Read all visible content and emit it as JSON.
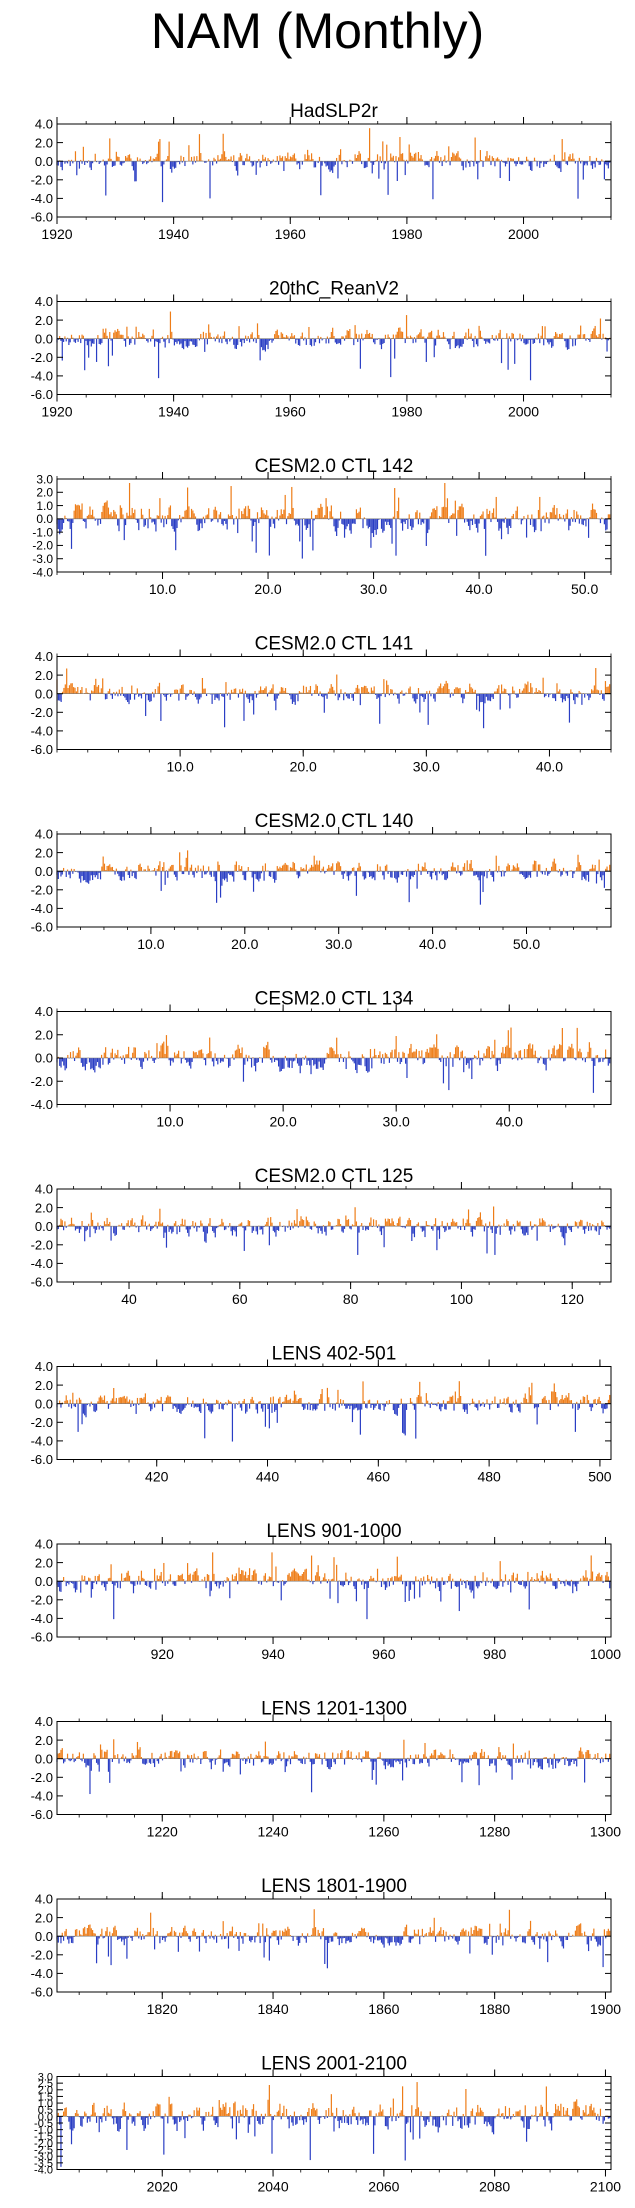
{
  "figure": {
    "title": "NAM (Monthly)"
  },
  "colors": {
    "positive": "#ee7d18",
    "negative": "#2a3ec4",
    "axis": "#000000"
  },
  "chart_data": [
    {
      "type": "bar",
      "title": "HadSLP2r",
      "ylim": [
        -6.0,
        4.0
      ],
      "yticks": [
        4.0,
        2.0,
        0.0,
        -2.0,
        -4.0,
        -6.0
      ],
      "ytick_labels": [
        "4.0",
        "2.0",
        "0.0",
        "-2.0",
        "-4.0",
        "-6.0"
      ],
      "xlim": [
        1920,
        2015
      ],
      "xticks": [
        1920,
        1940,
        1960,
        1980,
        2000
      ],
      "xtick_labels": [
        "1920",
        "1940",
        "1960",
        "1980",
        "2000"
      ],
      "x_start": 1920,
      "x_end": 2015,
      "n_bars": 420,
      "seed": 11,
      "pos_amp": 3.7,
      "neg_amp": 5.0
    },
    {
      "type": "bar",
      "title": "20thC_ReanV2",
      "ylim": [
        -6.0,
        4.0
      ],
      "yticks": [
        4.0,
        2.0,
        0.0,
        -2.0,
        -4.0,
        -6.0
      ],
      "ytick_labels": [
        "4.0",
        "2.0",
        "0.0",
        "-2.0",
        "-4.0",
        "-6.0"
      ],
      "xlim": [
        1920,
        2015
      ],
      "xticks": [
        1920,
        1940,
        1960,
        1980,
        2000
      ],
      "xtick_labels": [
        "1920",
        "1940",
        "1960",
        "1980",
        "2000"
      ],
      "x_start": 1920,
      "x_end": 2015,
      "n_bars": 420,
      "seed": 23,
      "pos_amp": 3.5,
      "neg_amp": 5.0
    },
    {
      "type": "bar",
      "title": "CESM2.0 CTL 142",
      "ylim": [
        -4.0,
        3.0
      ],
      "yticks": [
        3.0,
        2.0,
        1.0,
        0.0,
        -1.0,
        -2.0,
        -3.0,
        -4.0
      ],
      "ytick_labels": [
        "3.0",
        "2.0",
        "1.0",
        "0.0",
        "-1.0",
        "-2.0",
        "-3.0",
        "-4.0"
      ],
      "xlim": [
        0,
        52.5
      ],
      "xticks": [
        10,
        20,
        30,
        40,
        50
      ],
      "xtick_labels": [
        "10.0",
        "20.0",
        "30.0",
        "40.0",
        "50.0"
      ],
      "x_start": 0,
      "x_end": 52.5,
      "n_bars": 420,
      "seed": 37,
      "pos_amp": 2.7,
      "neg_amp": 3.9
    },
    {
      "type": "bar",
      "title": "CESM2.0 CTL 141",
      "ylim": [
        -6.0,
        4.0
      ],
      "yticks": [
        4.0,
        2.0,
        0.0,
        -2.0,
        -4.0,
        -6.0
      ],
      "ytick_labels": [
        "4.0",
        "2.0",
        "0.0",
        "-2.0",
        "-4.0",
        "-6.0"
      ],
      "xlim": [
        0,
        45
      ],
      "xticks": [
        10,
        20,
        30,
        40
      ],
      "xtick_labels": [
        "10.0",
        "20.0",
        "30.0",
        "40.0"
      ],
      "x_start": 0,
      "x_end": 45,
      "n_bars": 400,
      "seed": 41,
      "pos_amp": 2.8,
      "neg_amp": 3.8
    },
    {
      "type": "bar",
      "title": "CESM2.0 CTL 140",
      "ylim": [
        -6.0,
        4.0
      ],
      "yticks": [
        4.0,
        2.0,
        0.0,
        -2.0,
        -4.0,
        -6.0
      ],
      "ytick_labels": [
        "4.0",
        "2.0",
        "0.0",
        "-2.0",
        "-4.0",
        "-6.0"
      ],
      "xlim": [
        0,
        59
      ],
      "xticks": [
        10,
        20,
        30,
        40,
        50
      ],
      "xtick_labels": [
        "10.0",
        "20.0",
        "30.0",
        "40.0",
        "50.0"
      ],
      "x_start": 0,
      "x_end": 59,
      "n_bars": 420,
      "seed": 53,
      "pos_amp": 2.6,
      "neg_amp": 3.6
    },
    {
      "type": "bar",
      "title": "CESM2.0 CTL 134",
      "ylim": [
        -4.0,
        4.0
      ],
      "yticks": [
        4.0,
        2.0,
        0.0,
        -2.0,
        -4.0
      ],
      "ytick_labels": [
        "4.0",
        "2.0",
        "0.0",
        "-2.0",
        "-4.0"
      ],
      "xlim": [
        0,
        49
      ],
      "xticks": [
        10,
        20,
        30,
        40
      ],
      "xtick_labels": [
        "10.0",
        "20.0",
        "30.0",
        "40.0"
      ],
      "x_start": 0,
      "x_end": 49,
      "n_bars": 410,
      "seed": 67,
      "pos_amp": 3.0,
      "neg_amp": 3.0
    },
    {
      "type": "bar",
      "title": "CESM2.0 CTL 125",
      "ylim": [
        -6.0,
        4.0
      ],
      "yticks": [
        4.0,
        2.0,
        0.0,
        -2.0,
        -4.0,
        -6.0
      ],
      "ytick_labels": [
        "4.0",
        "2.0",
        "0.0",
        "-2.0",
        "-4.0",
        "-6.0"
      ],
      "xlim": [
        27,
        127
      ],
      "xticks": [
        40,
        60,
        80,
        100,
        120
      ],
      "xtick_labels": [
        "40",
        "60",
        "80",
        "100",
        "120"
      ],
      "x_start": 27,
      "x_end": 127,
      "n_bars": 420,
      "seed": 71,
      "pos_amp": 2.6,
      "neg_amp": 3.7
    },
    {
      "type": "bar",
      "title": "LENS 402-501",
      "ylim": [
        -6.0,
        4.0
      ],
      "yticks": [
        4.0,
        2.0,
        0.0,
        -2.0,
        -4.0,
        -6.0
      ],
      "ytick_labels": [
        "4.0",
        "2.0",
        "0.0",
        "-2.0",
        "-4.0",
        "-6.0"
      ],
      "xlim": [
        402,
        502
      ],
      "xticks": [
        420,
        440,
        460,
        480,
        500
      ],
      "xtick_labels": [
        "420",
        "440",
        "460",
        "480",
        "500"
      ],
      "x_start": 402,
      "x_end": 502,
      "n_bars": 420,
      "seed": 83,
      "pos_amp": 3.0,
      "neg_amp": 4.8
    },
    {
      "type": "bar",
      "title": "LENS 901-1000",
      "ylim": [
        -6.0,
        4.0
      ],
      "yticks": [
        4.0,
        2.0,
        0.0,
        -2.0,
        -4.0,
        -6.0
      ],
      "ytick_labels": [
        "4.0",
        "2.0",
        "0.0",
        "-2.0",
        "-4.0",
        "-6.0"
      ],
      "xlim": [
        901,
        1001
      ],
      "xticks": [
        920,
        940,
        960,
        980,
        1000
      ],
      "xtick_labels": [
        "920",
        "940",
        "960",
        "980",
        "1000"
      ],
      "x_start": 901,
      "x_end": 1001,
      "n_bars": 420,
      "seed": 97,
      "pos_amp": 3.1,
      "neg_amp": 4.5
    },
    {
      "type": "bar",
      "title": "LENS 1201-1300",
      "ylim": [
        -6.0,
        4.0
      ],
      "yticks": [
        4.0,
        2.0,
        0.0,
        -2.0,
        -4.0,
        -6.0
      ],
      "ytick_labels": [
        "4.0",
        "2.0",
        "0.0",
        "-2.0",
        "-4.0",
        "-6.0"
      ],
      "xlim": [
        1201,
        1301
      ],
      "xticks": [
        1220,
        1240,
        1260,
        1280,
        1300
      ],
      "xtick_labels": [
        "1220",
        "1240",
        "1260",
        "1280",
        "1300"
      ],
      "x_start": 1201,
      "x_end": 1301,
      "n_bars": 420,
      "seed": 101,
      "pos_amp": 2.7,
      "neg_amp": 3.8
    },
    {
      "type": "bar",
      "title": "LENS 1801-1900",
      "ylim": [
        -6.0,
        4.0
      ],
      "yticks": [
        4.0,
        2.0,
        0.0,
        -2.0,
        -4.0,
        -6.0
      ],
      "ytick_labels": [
        "4.0",
        "2.0",
        "0.0",
        "-2.0",
        "-4.0",
        "-6.0"
      ],
      "xlim": [
        1801,
        1901
      ],
      "xticks": [
        1820,
        1840,
        1860,
        1880,
        1900
      ],
      "xtick_labels": [
        "1820",
        "1840",
        "1860",
        "1880",
        "1900"
      ],
      "x_start": 1801,
      "x_end": 1901,
      "n_bars": 420,
      "seed": 113,
      "pos_amp": 2.9,
      "neg_amp": 3.6
    },
    {
      "type": "bar",
      "title": "LENS 2001-2100",
      "ylim": [
        -4.0,
        3.0
      ],
      "yticks": [
        3.0,
        2.5,
        2.0,
        1.5,
        1.0,
        0.5,
        0.0,
        -0.5,
        -1.0,
        -1.5,
        -2.0,
        -2.5,
        -3.0,
        -3.5,
        -4.0
      ],
      "ytick_labels": [
        "3.0",
        "2.5",
        "2.0",
        "1.5",
        "1.0",
        "0.5",
        "0.0",
        "-0.5",
        "-1.0",
        "-1.5",
        "-2.0",
        "-2.5",
        "-3.0",
        "-3.5",
        "-4.0"
      ],
      "xlim": [
        2001,
        2101
      ],
      "xticks": [
        2020,
        2040,
        2060,
        2080,
        2100
      ],
      "xtick_labels": [
        "2020",
        "2040",
        "2060",
        "2080",
        "2100"
      ],
      "x_start": 2001,
      "x_end": 2101,
      "n_bars": 420,
      "seed": 127,
      "pos_amp": 2.8,
      "neg_amp": 3.8
    }
  ]
}
